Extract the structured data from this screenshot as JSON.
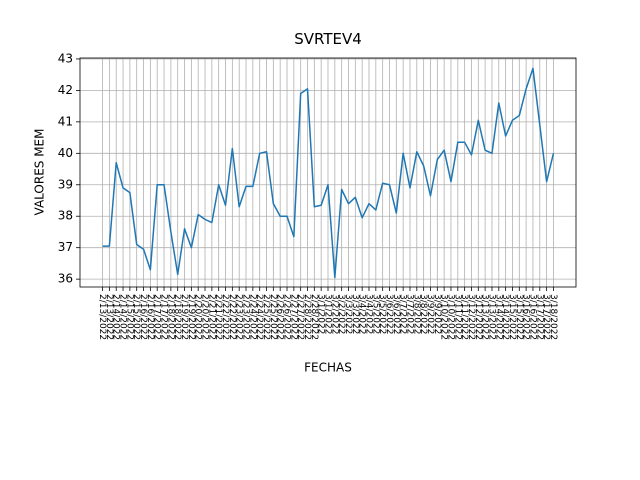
{
  "chart_data": {
    "type": "line",
    "title": "SVRTEV4",
    "x_label": "FECHAS",
    "y_label": "VALORES MEM",
    "categories": [
      "2/13/2022",
      "2/13/2022",
      "2/14/2022",
      "2/14/2022",
      "2/15/2022",
      "2/15/2022",
      "2/16/2022",
      "2/16/2022",
      "2/17/2022",
      "2/17/2022",
      "2/18/2022",
      "2/18/2022",
      "2/19/2022",
      "2/19/2022",
      "2/20/2022",
      "2/20/2022",
      "2/21/2022",
      "2/21/2022",
      "2/22/2022",
      "2/22/2022",
      "2/23/2022",
      "2/23/2022",
      "2/24/2022",
      "2/24/2022",
      "2/25/2022",
      "2/25/2022",
      "2/26/2022",
      "2/26/2022",
      "2/27/2022",
      "2/27/2022",
      "2/28/2022",
      "2/28/2022",
      "3/1/2022",
      "3/1/2022",
      "3/2/2022",
      "3/2/2022",
      "3/3/2022",
      "3/3/2022",
      "3/4/2022",
      "3/4/2022",
      "3/5/2022",
      "3/5/2022",
      "3/6/2022",
      "3/6/2022",
      "3/7/2022",
      "3/7/2022",
      "3/8/2022",
      "3/8/2022",
      "3/9/2022",
      "3/9/2022",
      "3/10/2022",
      "3/10/2022",
      "3/11/2022",
      "3/11/2022",
      "3/12/2022",
      "3/12/2022",
      "3/13/2022",
      "3/13/2022",
      "3/14/2022",
      "3/14/2022",
      "3/15/2022",
      "3/15/2022",
      "3/16/2022",
      "3/16/2022",
      "3/17/2022",
      "3/17/2022",
      "3/18/2022"
    ],
    "series": [
      {
        "name": "SVRTEV4",
        "color": "#1f77b4",
        "values": [
          37.05,
          37.05,
          39.7,
          38.9,
          38.75,
          37.1,
          36.95,
          36.3,
          39.0,
          39.0,
          37.5,
          36.15,
          37.6,
          37.0,
          38.05,
          37.9,
          37.8,
          39.0,
          38.35,
          40.15,
          38.3,
          38.95,
          38.95,
          40.0,
          40.05,
          38.4,
          38.0,
          38.0,
          37.35,
          41.9,
          42.05,
          38.3,
          38.35,
          39.0,
          36.05,
          38.85,
          38.4,
          38.6,
          37.95,
          38.4,
          38.2,
          39.05,
          39.0,
          38.1,
          40.0,
          38.9,
          40.05,
          39.6,
          38.65,
          39.8,
          40.1,
          39.1,
          40.35,
          40.35,
          39.95,
          41.05,
          40.1,
          40.0,
          41.6,
          40.55,
          41.05,
          41.2,
          42.05,
          42.7,
          40.9,
          39.1,
          40.0
        ]
      }
    ],
    "ylim": [
      35.75,
      43.03
    ],
    "yticks": [
      36,
      37,
      38,
      39,
      40,
      41,
      42,
      43
    ],
    "grid": true
  }
}
